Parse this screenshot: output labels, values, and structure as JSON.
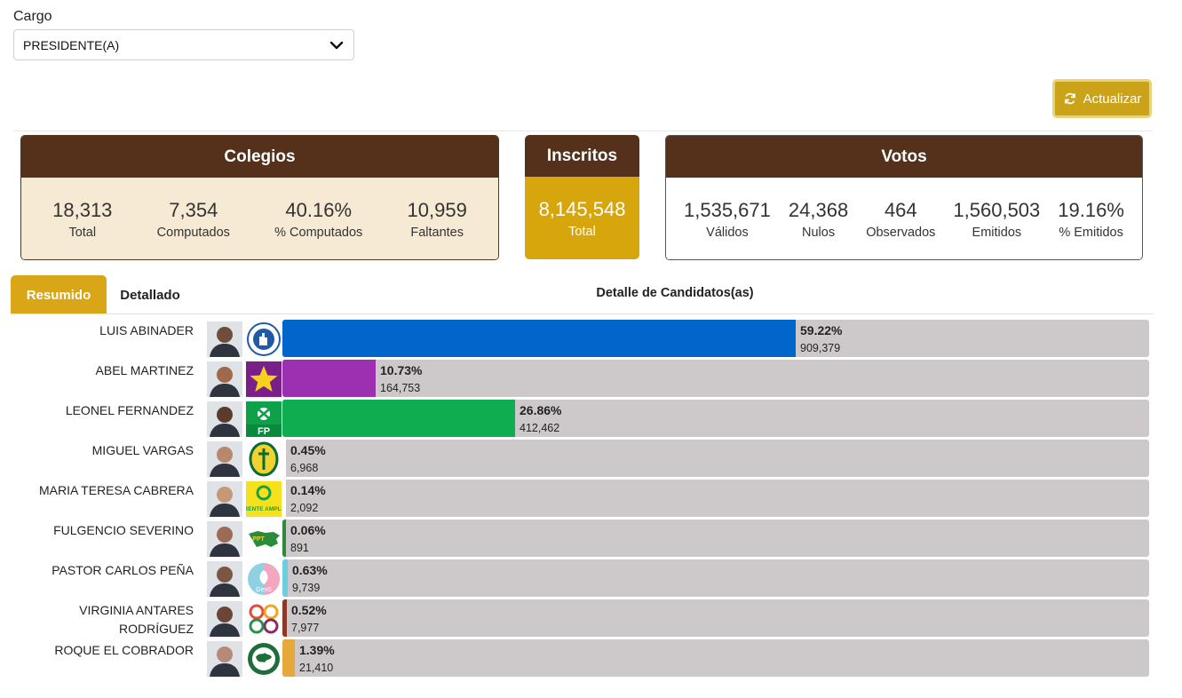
{
  "cargo": {
    "label": "Cargo",
    "selected": "PRESIDENTE(A)"
  },
  "refresh_label": "Actualizar",
  "colegios": {
    "title": "Colegios",
    "stats": [
      {
        "value": "18,313",
        "label": "Total"
      },
      {
        "value": "7,354",
        "label": "Computados"
      },
      {
        "value": "40.16%",
        "label": "% Computados"
      },
      {
        "value": "10,959",
        "label": "Faltantes"
      }
    ]
  },
  "inscritos": {
    "title": "Inscritos",
    "value": "8,145,548",
    "label": "Total"
  },
  "votos": {
    "title": "Votos",
    "stats": [
      {
        "value": "1,535,671",
        "label": "Válidos"
      },
      {
        "value": "24,368",
        "label": "Nulos"
      },
      {
        "value": "464",
        "label": "Observados"
      },
      {
        "value": "1,560,503",
        "label": "Emitidos"
      },
      {
        "value": "19.16%",
        "label": "% Emitidos"
      }
    ]
  },
  "tabs": {
    "resumen": "Resumido",
    "detallado": "Detallado"
  },
  "detalle_title": "Detalle de Candidatos(as)",
  "colors": {
    "brown": "#55301a",
    "gold": "#d8a616",
    "track": "#cdc9cb"
  },
  "candidates": [
    {
      "name": "LUIS ABINADER",
      "pct": "59.22%",
      "votes": "909,379",
      "fraction": 0.5922,
      "color": "#0066cc",
      "logo": "hand-logo-icon"
    },
    {
      "name": "ABEL MARTINEZ",
      "pct": "10.73%",
      "votes": "164,753",
      "fraction": 0.1073,
      "color": "#9b30b0",
      "logo": "star-logo-icon"
    },
    {
      "name": "LEONEL FERNANDEZ",
      "pct": "26.86%",
      "votes": "412,462",
      "fraction": 0.2686,
      "color": "#0fad4f",
      "logo": "fp-logo-icon"
    },
    {
      "name": "MIGUEL VARGAS",
      "pct": "0.45%",
      "votes": "6,968",
      "fraction": 0.0045,
      "color": "#ffffff",
      "logo": "prd-logo-icon"
    },
    {
      "name": "MARIA TERESA CABRERA",
      "pct": "0.14%",
      "votes": "2,092",
      "fraction": 0.0014,
      "color": "#ffffff",
      "logo": "frente-amplio-logo-icon",
      "logo_text": "FRENTE AMPLIO"
    },
    {
      "name": "FULGENCIO SEVERINO",
      "pct": "0.06%",
      "votes": "891",
      "fraction": 0.0006,
      "color": "#2a8c3a",
      "logo": "map-logo-icon",
      "logo_text": "PPT"
    },
    {
      "name": "PASTOR CARLOS PEÑA",
      "pct": "0.63%",
      "votes": "9,739",
      "fraction": 0.0063,
      "color": "#6ecde0",
      "logo": "gens-logo-icon",
      "logo_text": "GenS"
    },
    {
      "name": "VIRGINIA ANTARES RODRÍGUEZ",
      "name_lines": [
        "VIRGINIA ANTARES",
        "RODRÍGUEZ"
      ],
      "pct": "0.52%",
      "votes": "7,977",
      "fraction": 0.0052,
      "color": "#8b3b24",
      "logo": "circles-logo-icon"
    },
    {
      "name": "ROQUE EL COBRADOR",
      "pct": "1.39%",
      "votes": "21,410",
      "fraction": 0.0139,
      "color": "#e6a83b",
      "logo": "globe-logo-icon"
    }
  ]
}
